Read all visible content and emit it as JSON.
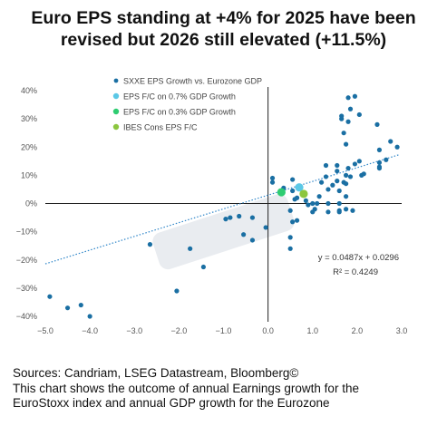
{
  "title": {
    "line1": "Euro EPS standing at +4% for 2025 have been",
    "line2": "revised but 2026 still elevated (+11.5%)"
  },
  "footer": {
    "sources": "Sources: Candriam, LSEG Datastream, Bloomberg©",
    "note1": "This chart shows the outcome of annual Earnings growth for the",
    "note2": "EuroStoxx index and annual GDP growth for the Eurozone"
  },
  "colors": {
    "sxxe": "#1a6fa3",
    "fc07": "#5bc8e6",
    "fc03": "#2ecc71",
    "ibes": "#8cc63f",
    "trend": "#2f86c9",
    "highlight": "#e9ecf0"
  },
  "chart_data": {
    "type": "scatter",
    "title": "",
    "xlabel": "",
    "ylabel": "",
    "xlim": [
      -5.0,
      3.0
    ],
    "ylim": [
      -40,
      40
    ],
    "x_ticks": [
      -5.0,
      -4.0,
      -3.0,
      -2.0,
      -1.0,
      0.0,
      1.0,
      2.0,
      3.0
    ],
    "x_tick_labels": [
      "−5.0",
      "−4.0",
      "−3.0",
      "−2.0",
      "−1.0",
      "0.0",
      "1.0",
      "2.0",
      "3.0"
    ],
    "y_ticks": [
      -40,
      -30,
      -20,
      -10,
      0,
      10,
      20,
      30,
      40
    ],
    "y_tick_labels": [
      "−40%",
      "−30%",
      "−20%",
      "−10%",
      "0%",
      "10%",
      "20%",
      "30%",
      "40%"
    ],
    "grid": false,
    "legend_position": "top-left",
    "series": [
      {
        "name": "SXXE EPS Growth vs. Eurozone GDP",
        "color": "#1a6fa3",
        "points": [
          [
            -4.9,
            -33
          ],
          [
            -4.5,
            -37
          ],
          [
            -4.2,
            -36
          ],
          [
            -4.0,
            -40
          ],
          [
            -2.65,
            -14.5
          ],
          [
            -2.05,
            -31
          ],
          [
            -1.75,
            -16
          ],
          [
            -1.45,
            -22.5
          ],
          [
            -0.95,
            -5.5
          ],
          [
            -0.85,
            -5
          ],
          [
            -0.65,
            -4.5
          ],
          [
            -0.55,
            -11
          ],
          [
            -0.35,
            -13
          ],
          [
            -0.35,
            -5
          ],
          [
            -0.05,
            -8.5
          ],
          [
            0.1,
            9
          ],
          [
            0.1,
            7.5
          ],
          [
            0.35,
            5.5
          ],
          [
            0.55,
            8.5
          ],
          [
            0.55,
            4.5
          ],
          [
            0.6,
            1.5
          ],
          [
            0.5,
            -2.5
          ],
          [
            0.55,
            -6.5
          ],
          [
            0.5,
            -12
          ],
          [
            0.5,
            -16
          ],
          [
            0.65,
            -6
          ],
          [
            0.65,
            2
          ],
          [
            0.85,
            1
          ],
          [
            0.9,
            -0.5
          ],
          [
            1.0,
            0
          ],
          [
            1.05,
            -2
          ],
          [
            1.0,
            -3
          ],
          [
            1.1,
            0
          ],
          [
            1.15,
            2.5
          ],
          [
            1.2,
            7.5
          ],
          [
            1.3,
            13.5
          ],
          [
            1.3,
            9.5
          ],
          [
            1.35,
            5
          ],
          [
            1.35,
            0
          ],
          [
            1.35,
            -3
          ],
          [
            1.45,
            6.5
          ],
          [
            1.55,
            8
          ],
          [
            1.55,
            11.5
          ],
          [
            1.55,
            13.5
          ],
          [
            1.6,
            4.5
          ],
          [
            1.6,
            0
          ],
          [
            1.6,
            -2.5
          ],
          [
            1.6,
            -3
          ],
          [
            1.65,
            30
          ],
          [
            1.65,
            31
          ],
          [
            1.7,
            25
          ],
          [
            1.75,
            21
          ],
          [
            1.75,
            10
          ],
          [
            1.7,
            7.5
          ],
          [
            1.75,
            7
          ],
          [
            1.75,
            2.5
          ],
          [
            1.75,
            -2
          ],
          [
            1.8,
            37.5
          ],
          [
            1.8,
            29
          ],
          [
            1.8,
            12.5
          ],
          [
            1.85,
            33.5
          ],
          [
            1.85,
            9.5
          ],
          [
            1.9,
            -2.5
          ],
          [
            1.95,
            38
          ],
          [
            1.95,
            14
          ],
          [
            2.05,
            31.5
          ],
          [
            2.05,
            15
          ],
          [
            2.1,
            10
          ],
          [
            2.15,
            10.5
          ],
          [
            2.45,
            28
          ],
          [
            2.5,
            19
          ],
          [
            2.5,
            14.5
          ],
          [
            2.5,
            13
          ],
          [
            2.5,
            12.5
          ],
          [
            2.65,
            15.5
          ],
          [
            2.75,
            22
          ],
          [
            2.9,
            20
          ]
        ]
      },
      {
        "name": "EPS F/C on 0.7% GDP Growth",
        "color": "#5bc8e6",
        "points": [
          [
            0.7,
            5.7
          ]
        ]
      },
      {
        "name": "EPS F/C on 0.3% GDP Growth",
        "color": "#2ecc71",
        "points": [
          [
            0.3,
            4.0
          ]
        ]
      },
      {
        "name": "IBES Cons EPS F/C",
        "color": "#8cc63f",
        "points": [
          [
            0.8,
            3.4
          ]
        ]
      }
    ],
    "trendline": {
      "slope": 0.0487,
      "intercept": 0.0296
    },
    "annotation": {
      "equation": "y = 0.0487x + 0.0296",
      "r2": "R² = 0.4249"
    }
  }
}
